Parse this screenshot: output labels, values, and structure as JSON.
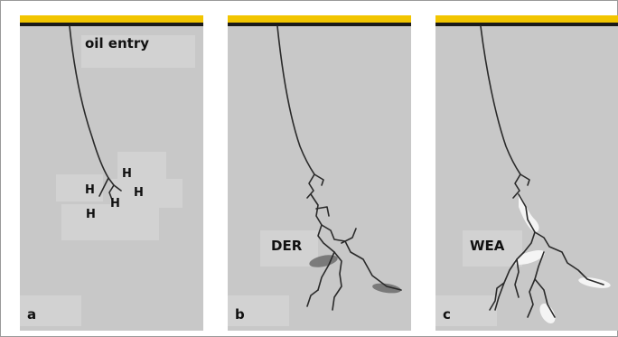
{
  "colors": {
    "background": "#ffffff",
    "frame": "#9a9a9a",
    "panel": "#c8c8c8",
    "label_box": "#d2d2d2",
    "rail_top": "#f2c500",
    "rail_bottom": "#1a1a1a",
    "crack": "#2a2a2a",
    "derivative_stain": "#6d6d6d",
    "wear_stain": "#f4f4f4"
  },
  "panels": [
    {
      "letter": "a",
      "caption": "oil entry",
      "markers": [
        "H",
        "H",
        "H",
        "H",
        "H"
      ]
    },
    {
      "letter": "b",
      "caption": "DER"
    },
    {
      "letter": "c",
      "caption": "WEA"
    }
  ]
}
